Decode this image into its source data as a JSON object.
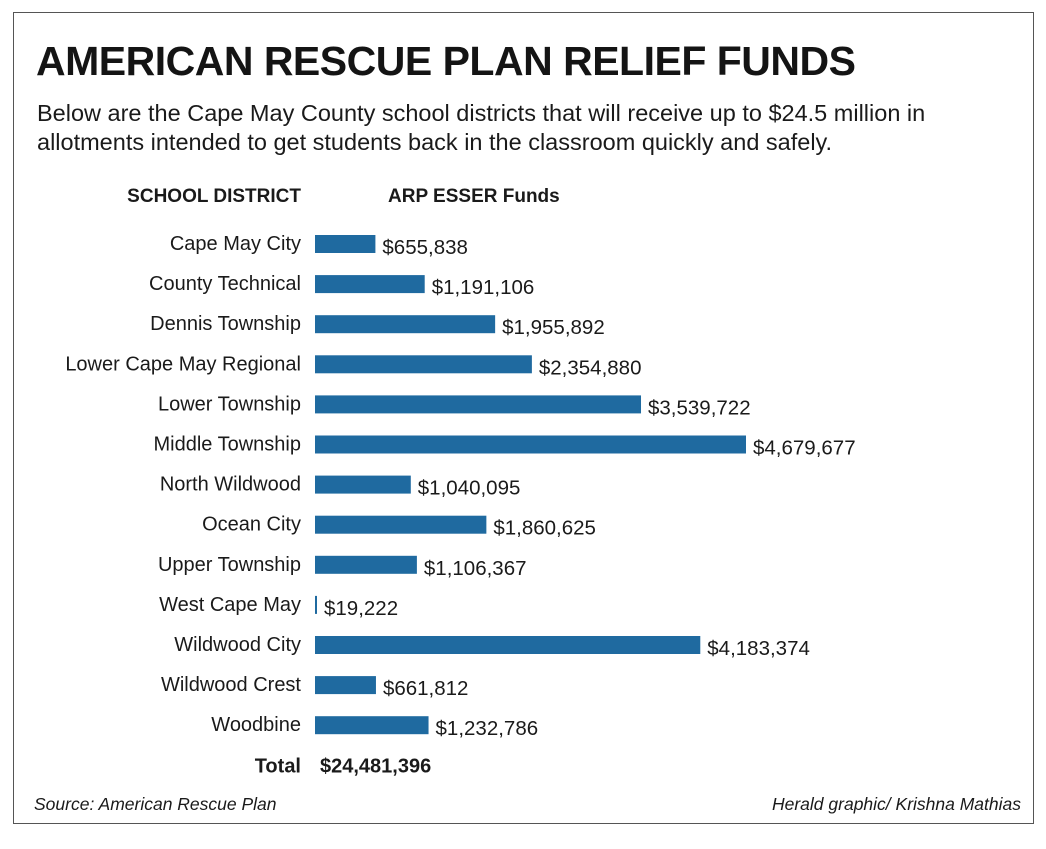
{
  "chart_data": {
    "type": "bar",
    "orientation": "horizontal",
    "title": "AMERICAN RESCUE PLAN RELIEF FUNDS",
    "subtitle": "Below are the Cape May County school districts that will receive up to $24.5 million in allotments intended to get students back in the classroom quickly and safely.",
    "xlabel": "ARP ESSER Funds",
    "ylabel": "SCHOOL DISTRICT",
    "categories": [
      "Cape May City",
      "County Technical",
      "Dennis Township",
      "Lower Cape May Regional",
      "Lower Township",
      "Middle Township",
      "North Wildwood",
      "Ocean City",
      "Upper Township",
      "West Cape May",
      "Wildwood City",
      "Wildwood Crest",
      "Woodbine"
    ],
    "values": [
      655838,
      1191106,
      1955892,
      2354880,
      3539722,
      4679677,
      1040095,
      1860625,
      1106367,
      19222,
      4183374,
      661812,
      1232786
    ],
    "value_labels": [
      "$655,838",
      "$1,191,106",
      "$1,955,892",
      "$2,354,880",
      "$3,539,722",
      "$4,679,677",
      "$1,040,095",
      "$1,860,625",
      "$1,106,367",
      "$19,222",
      "$4,183,374",
      "$661,812",
      "$1,232,786"
    ],
    "total_label": "Total",
    "total_value": 24481396,
    "total_display": "$24,481,396",
    "xlim": [
      0,
      4679677
    ],
    "grid": false,
    "legend": "none",
    "bar_color": "#1f6aa0",
    "source": "Source: American Rescue Plan",
    "credit": "Herald graphic/ Krishna Mathias"
  }
}
